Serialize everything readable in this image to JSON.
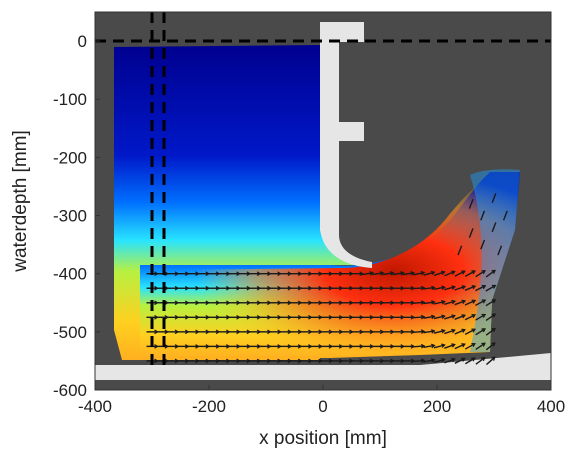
{
  "chart_data": {
    "type": "heatmap",
    "xlabel": "x position [mm]",
    "ylabel": "waterdepth [mm]",
    "xlim": [
      -400,
      400
    ],
    "ylim": [
      -600,
      50
    ],
    "x_ticks": [
      "-400",
      "-200",
      "0",
      "200",
      "400"
    ],
    "x_tick_values": [
      -400,
      -200,
      0,
      200,
      400
    ],
    "y_ticks": [
      "0",
      "-100",
      "-200",
      "-300",
      "-400",
      "-500",
      "-600"
    ],
    "y_tick_values": [
      0,
      -100,
      -200,
      -300,
      -400,
      -500,
      -600
    ],
    "grid": false,
    "colors": {
      "background": "#4a4a4a",
      "structure": "#e6e6e6",
      "field_low": "#00008f",
      "field_mid": "#00e0ff",
      "field_high": "#ff2000",
      "vector": "#1a1a1a",
      "reference_line": "#000000"
    },
    "reference_lines": [
      {
        "orientation": "horizontal",
        "value": 0,
        "style": "dashed"
      },
      {
        "orientation": "vertical",
        "value": -297,
        "style": "dashed"
      },
      {
        "orientation": "vertical",
        "value": -280,
        "style": "dashed"
      }
    ],
    "structure": {
      "vertical_wall_x": [
        0,
        25
      ],
      "wall_top": 30,
      "flange_x": [
        25,
        75
      ],
      "flange_y": [
        -190,
        -155
      ],
      "top_flange_x": [
        25,
        75
      ],
      "top_flange_y": [
        0,
        30
      ],
      "floor_y": [
        -600,
        -570
      ]
    },
    "field_extent": {
      "x": [
        -370,
        340
      ],
      "y": [
        -575,
        -15
      ]
    },
    "vector_field": {
      "rows_y": [
        -400,
        -425,
        -450,
        -475,
        -500,
        -525,
        -550
      ],
      "x_range": [
        -300,
        300
      ],
      "dominant_direction": "positive x, turning upward near x = 250",
      "note": ""
    }
  }
}
